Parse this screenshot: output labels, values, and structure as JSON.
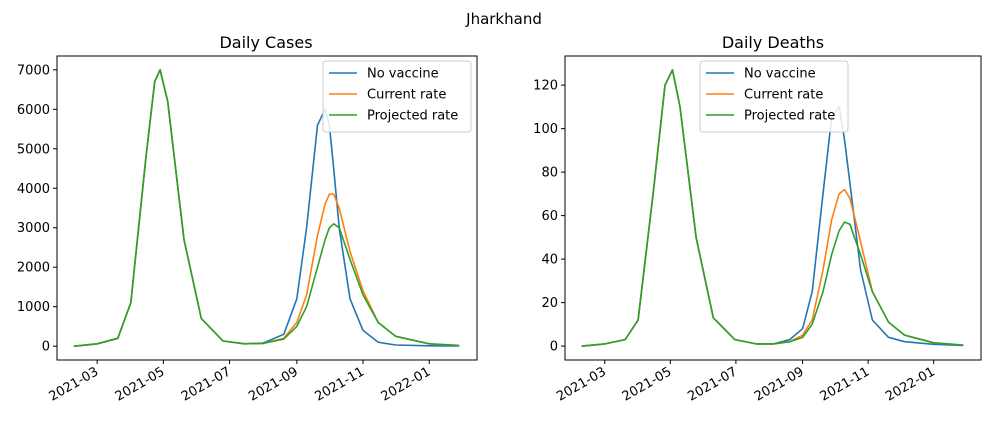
{
  "figure": {
    "suptitle": "Jharkhand"
  },
  "chart_data": [
    {
      "type": "line",
      "title": "Daily Cases",
      "xlabel": "",
      "ylabel": "",
      "x": [
        "2021-02-08",
        "2021-03-01",
        "2021-03-20",
        "2021-04-01",
        "2021-04-15",
        "2021-04-23",
        "2021-04-28",
        "2021-05-05",
        "2021-05-20",
        "2021-06-05",
        "2021-06-25",
        "2021-07-15",
        "2021-08-01",
        "2021-08-20",
        "2021-09-01",
        "2021-09-10",
        "2021-09-20",
        "2021-09-27",
        "2021-10-01",
        "2021-10-05",
        "2021-10-10",
        "2021-10-20",
        "2021-11-01",
        "2021-11-15",
        "2021-12-01",
        "2022-01-01",
        "2022-01-28"
      ],
      "series": [
        {
          "name": "No vaccine",
          "color": "#1f77b4",
          "values": [
            0,
            60,
            200,
            1100,
            4800,
            6700,
            7000,
            6200,
            2700,
            700,
            130,
            60,
            80,
            300,
            1200,
            3000,
            5600,
            6000,
            5600,
            4500,
            3000,
            1200,
            400,
            100,
            30,
            10,
            5
          ]
        },
        {
          "name": "Current rate",
          "color": "#ff7f0e",
          "values": [
            0,
            60,
            200,
            1100,
            4800,
            6700,
            7000,
            6200,
            2700,
            700,
            130,
            60,
            70,
            200,
            600,
            1300,
            2800,
            3600,
            3850,
            3850,
            3500,
            2400,
            1400,
            600,
            250,
            60,
            20
          ]
        },
        {
          "name": "Projected rate",
          "color": "#2ca02c",
          "values": [
            0,
            60,
            200,
            1100,
            4800,
            6700,
            7000,
            6200,
            2700,
            700,
            130,
            60,
            70,
            180,
            500,
            1000,
            2000,
            2700,
            3000,
            3100,
            3000,
            2200,
            1300,
            600,
            250,
            60,
            20
          ]
        }
      ],
      "x_ticks": [
        "2021-03",
        "2021-05",
        "2021-07",
        "2021-09",
        "2021-11",
        "2022-01"
      ],
      "y_ticks": [
        0,
        1000,
        2000,
        3000,
        4000,
        5000,
        6000,
        7000
      ],
      "xlim": [
        "2021-01-23",
        "2022-02-14"
      ],
      "ylim": [
        -350,
        7350
      ],
      "legend_position": "top-right",
      "grid": false
    },
    {
      "type": "line",
      "title": "Daily Deaths",
      "xlabel": "",
      "ylabel": "",
      "x": [
        "2021-02-08",
        "2021-03-01",
        "2021-03-20",
        "2021-04-01",
        "2021-04-15",
        "2021-04-26",
        "2021-05-03",
        "2021-05-10",
        "2021-05-25",
        "2021-06-10",
        "2021-06-30",
        "2021-07-20",
        "2021-08-05",
        "2021-08-20",
        "2021-09-01",
        "2021-09-10",
        "2021-09-20",
        "2021-09-28",
        "2021-10-05",
        "2021-10-10",
        "2021-10-15",
        "2021-10-25",
        "2021-11-05",
        "2021-11-20",
        "2021-12-05",
        "2022-01-01",
        "2022-01-28"
      ],
      "series": [
        {
          "name": "No vaccine",
          "color": "#1f77b4",
          "values": [
            0,
            1,
            3,
            12,
            70,
            120,
            127,
            110,
            50,
            13,
            3,
            1,
            1,
            3,
            8,
            25,
            70,
            105,
            110,
            95,
            75,
            35,
            12,
            4,
            2,
            0.8,
            0.3
          ]
        },
        {
          "name": "Current rate",
          "color": "#ff7f0e",
          "values": [
            0,
            1,
            3,
            12,
            70,
            120,
            127,
            110,
            50,
            13,
            3,
            1,
            1,
            2,
            5,
            12,
            35,
            58,
            70,
            72,
            68,
            48,
            25,
            11,
            5,
            1.5,
            0.5
          ]
        },
        {
          "name": "Projected rate",
          "color": "#2ca02c",
          "values": [
            0,
            1,
            3,
            12,
            70,
            120,
            127,
            110,
            50,
            13,
            3,
            1,
            1,
            2,
            4,
            10,
            25,
            42,
            53,
            57,
            56,
            42,
            25,
            11,
            5,
            1.5,
            0.5
          ]
        }
      ],
      "x_ticks": [
        "2021-03",
        "2021-05",
        "2021-07",
        "2021-09",
        "2021-11",
        "2022-01"
      ],
      "y_ticks": [
        0,
        20,
        40,
        60,
        80,
        100,
        120
      ],
      "xlim": [
        "2021-01-23",
        "2022-02-14"
      ],
      "ylim": [
        -6.4,
        133.4
      ],
      "legend_position": "top-center",
      "grid": false
    }
  ]
}
